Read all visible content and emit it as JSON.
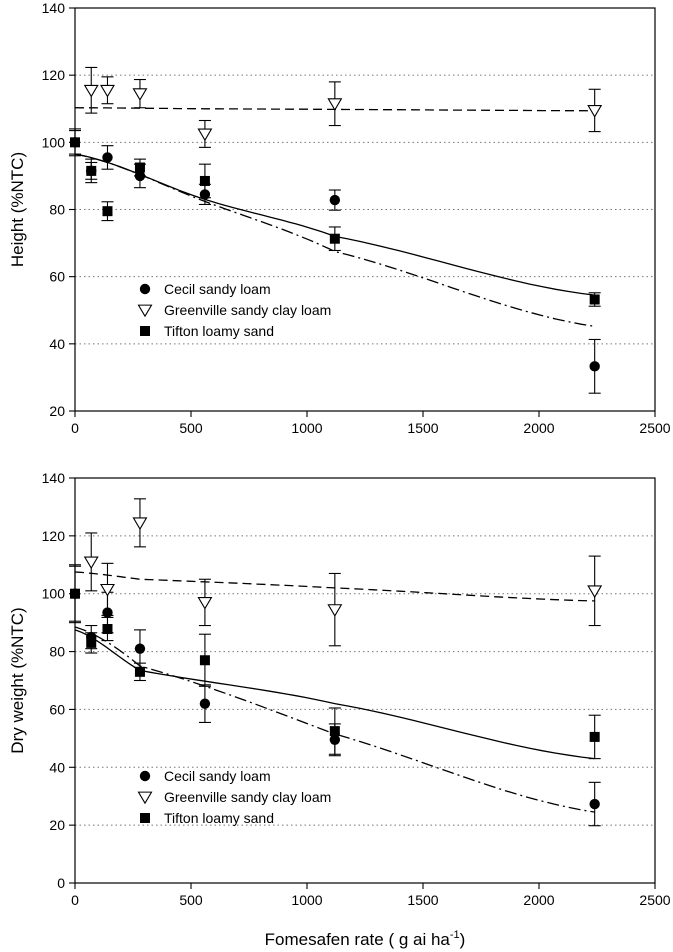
{
  "chart_data": [
    {
      "type": "scatter",
      "ylabel": "Height (%NTC)",
      "xlabel": "",
      "xlim": [
        0,
        2500
      ],
      "ylim": [
        20,
        140
      ],
      "xticks": [
        "0",
        "500",
        "1000",
        "1500",
        "2000",
        "2500"
      ],
      "yticks": [
        "20",
        "40",
        "60",
        "80",
        "100",
        "120",
        "140"
      ],
      "grid": "horizontal dotted",
      "legend_position": "lower-left",
      "series": [
        {
          "name": "Cecil sandy loam",
          "marker": "filled-circle",
          "x": [
            0,
            70,
            140,
            280,
            560,
            1120,
            2240
          ],
          "y": [
            100,
            91.5,
            95.5,
            90,
            84.5,
            82.8,
            33.3
          ],
          "err": [
            3.5,
            2.5,
            3.5,
            3.5,
            3.0,
            3.0,
            8.0
          ],
          "fit": "dash-dot",
          "fit_y": [
            96.5,
            82.4,
            67.5,
            45.2
          ]
        },
        {
          "name": "Greenville sandy clay loam",
          "marker": "open-triangle-down",
          "x": [
            70,
            140,
            280,
            560,
            1120,
            2240
          ],
          "y": [
            115.5,
            115.5,
            114.5,
            102.5,
            111.5,
            109.5
          ],
          "err": [
            6.8,
            4.0,
            4.2,
            4.0,
            6.5,
            6.3
          ],
          "fit": "dashed",
          "fit_y": [
            110.3,
            110.0,
            109.8,
            109.4
          ]
        },
        {
          "name": "Tifton loamy sand",
          "marker": "filled-square",
          "x": [
            0,
            70,
            140,
            280,
            560,
            1120,
            2240
          ],
          "y": [
            100,
            91.5,
            79.5,
            92.5,
            88.5,
            71.3,
            53.2
          ],
          "err": [
            4.0,
            3.5,
            2.8,
            2.5,
            5.0,
            3.5,
            2.0
          ],
          "fit": "solid",
          "fit_y": [
            96.5,
            83.0,
            72.0,
            54.5
          ]
        }
      ]
    },
    {
      "type": "scatter",
      "ylabel": "Dry weight (%NTC)",
      "xlabel": "Fomesafen rate ( g ai ha",
      "xlabel_sup": "-1",
      "xlabel_end": ")",
      "xlim": [
        0,
        2500
      ],
      "ylim": [
        0,
        140
      ],
      "xticks": [
        "0",
        "500",
        "1000",
        "1500",
        "2000",
        "2500"
      ],
      "yticks": [
        "0",
        "20",
        "40",
        "60",
        "80",
        "100",
        "120",
        "140"
      ],
      "grid": "horizontal dotted",
      "legend_position": "lower-left",
      "series": [
        {
          "name": "Cecil sandy loam",
          "marker": "filled-circle",
          "x": [
            0,
            70,
            140,
            280,
            560,
            1120,
            2240
          ],
          "y": [
            100,
            85,
            93.5,
            81,
            62,
            49.5,
            27.3
          ],
          "err": [
            9.5,
            4.0,
            7.0,
            6.5,
            6.5,
            5.5,
            7.5
          ],
          "fit": "dash-dot",
          "fit_y": [
            88.5,
            75.0,
            51.5,
            24.5
          ]
        },
        {
          "name": "Greenville sandy clay loam",
          "marker": "open-triangle-down",
          "x": [
            70,
            140,
            280,
            560,
            1120,
            2240
          ],
          "y": [
            111,
            101.5,
            124.5,
            97,
            94.5,
            101
          ],
          "err": [
            10.0,
            9.0,
            8.3,
            8.0,
            12.5,
            12.0
          ],
          "fit": "dashed",
          "fit_y": [
            107.5,
            105.0,
            102.0,
            97.5
          ]
        },
        {
          "name": "Tifton loamy sand",
          "marker": "filled-square",
          "x": [
            0,
            70,
            140,
            280,
            560,
            1120,
            2240
          ],
          "y": [
            100,
            83,
            87.8,
            73,
            77,
            52.5,
            50.5
          ],
          "err": [
            10.0,
            3.5,
            4.0,
            3.0,
            9.0,
            8.0,
            7.5
          ],
          "fit": "solid",
          "fit_y": [
            87.5,
            73.5,
            62.0,
            43.0
          ]
        }
      ]
    }
  ]
}
